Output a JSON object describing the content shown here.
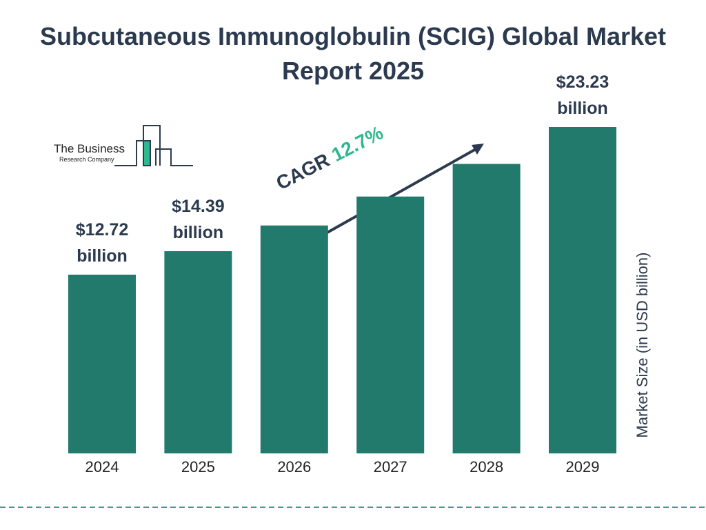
{
  "chart_data": {
    "type": "bar",
    "title": "Subcutaneous Immunoglobulin (SCIG) Global Market Report 2025",
    "categories": [
      "2024",
      "2025",
      "2026",
      "2027",
      "2028",
      "2029"
    ],
    "values": [
      12.72,
      14.39,
      16.22,
      18.28,
      20.6,
      23.23
    ],
    "value_labels": [
      "$12.72 billion",
      "$14.39 billion",
      null,
      null,
      null,
      "$23.23 billion"
    ],
    "color": "#217a6b",
    "y_axis_label": "Market Size (in USD billion)",
    "annotation": {
      "label": "CAGR",
      "value": "12.7%"
    }
  },
  "logo": {
    "line1": "The Business",
    "line2": "Research Company"
  }
}
